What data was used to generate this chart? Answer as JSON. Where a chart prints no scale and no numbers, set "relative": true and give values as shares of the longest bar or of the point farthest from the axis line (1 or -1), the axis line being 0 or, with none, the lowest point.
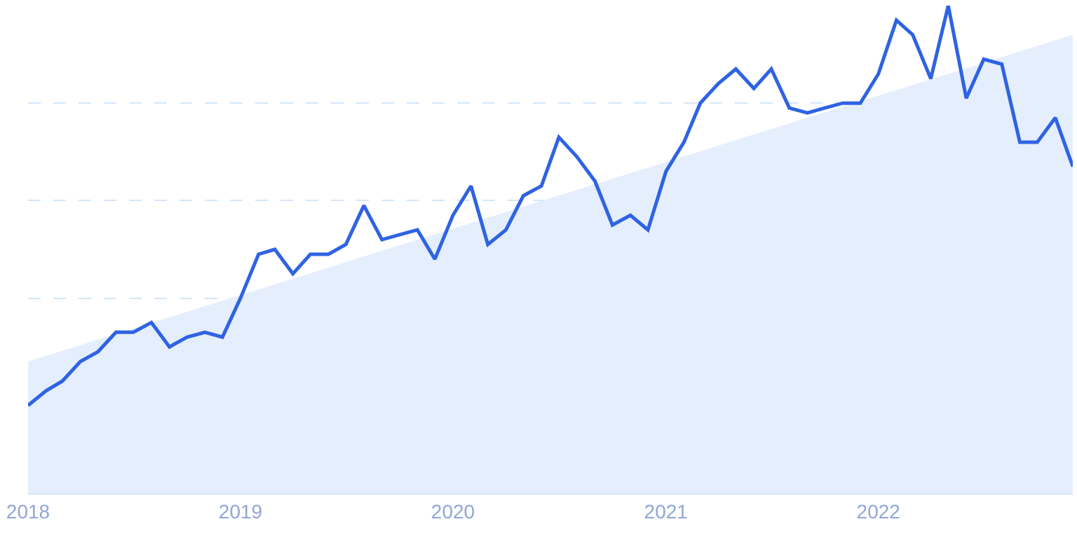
{
  "chart_data": {
    "type": "line",
    "relative": true,
    "grid": "y",
    "line_style": "solid",
    "x": [
      "2018-01",
      "2018-02",
      "2018-03",
      "2018-04",
      "2018-05",
      "2018-06",
      "2018-07",
      "2018-08",
      "2018-09",
      "2018-10",
      "2018-11",
      "2018-12",
      "2019-01",
      "2019-02",
      "2019-03",
      "2019-04",
      "2019-05",
      "2019-06",
      "2019-07",
      "2019-08",
      "2019-09",
      "2019-10",
      "2019-11",
      "2019-12",
      "2020-01",
      "2020-02",
      "2020-03",
      "2020-04",
      "2020-05",
      "2020-06",
      "2020-07",
      "2020-08",
      "2020-09",
      "2020-10",
      "2020-11",
      "2020-12",
      "2021-01",
      "2021-02",
      "2021-03",
      "2021-04",
      "2021-05",
      "2021-06",
      "2021-07",
      "2021-08",
      "2021-09",
      "2021-10",
      "2021-11",
      "2021-12",
      "2022-01",
      "2022-02",
      "2022-03",
      "2022-04",
      "2022-05",
      "2022-06",
      "2022-07",
      "2022-08",
      "2022-09",
      "2022-10",
      "2022-11",
      "2022-12"
    ],
    "xlim": [
      "2018-01",
      "2022-12"
    ],
    "xticks": [
      "2018",
      "2019",
      "2020",
      "2021",
      "2022"
    ],
    "series": [
      {
        "type": "area",
        "color": "#e4eefc",
        "x": [
          "2018-01",
          "2022-12"
        ],
        "values": [
          0.27,
          0.94
        ]
      },
      {
        "color": "#2f63e3",
        "values": [
          0.18,
          0.21,
          0.23,
          0.27,
          0.29,
          0.33,
          0.33,
          0.35,
          0.3,
          0.32,
          0.33,
          0.32,
          0.4,
          0.49,
          0.5,
          0.45,
          0.49,
          0.49,
          0.51,
          0.59,
          0.52,
          0.53,
          0.54,
          0.48,
          0.57,
          0.63,
          0.51,
          0.54,
          0.61,
          0.63,
          0.73,
          0.69,
          0.64,
          0.55,
          0.57,
          0.54,
          0.66,
          0.72,
          0.8,
          0.84,
          0.87,
          0.83,
          0.87,
          0.79,
          0.78,
          0.79,
          0.8,
          0.8,
          0.86,
          0.97,
          0.94,
          0.85,
          1,
          0.81,
          0.89,
          0.88,
          0.72,
          0.72,
          0.77,
          0.67
        ]
      }
    ]
  }
}
